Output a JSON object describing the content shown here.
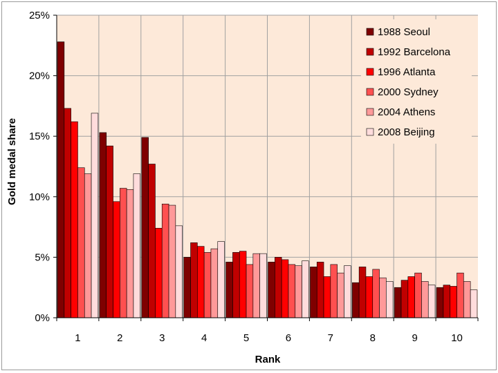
{
  "chart_data": {
    "type": "bar",
    "title": "",
    "xlabel": "Rank",
    "ylabel": "Gold medal share",
    "ylim": [
      0,
      25
    ],
    "yticks": [
      0,
      5,
      10,
      15,
      20,
      25
    ],
    "ytick_labels": [
      "0%",
      "5%",
      "10%",
      "15%",
      "20%",
      "25%"
    ],
    "y_unit": "%",
    "categories": [
      "1",
      "2",
      "3",
      "4",
      "5",
      "6",
      "7",
      "8",
      "9",
      "10"
    ],
    "grid": true,
    "legend_position": "top-right",
    "plot_background": "#fde9d9",
    "series": [
      {
        "name": "1988 Seoul",
        "color": "#7f0000",
        "values": [
          22.8,
          15.3,
          14.9,
          5.0,
          4.6,
          4.6,
          4.2,
          2.9,
          2.5,
          2.5
        ]
      },
      {
        "name": "1992 Barcelona",
        "color": "#c00000",
        "values": [
          17.3,
          14.2,
          12.7,
          6.2,
          5.4,
          5.0,
          4.6,
          4.2,
          3.1,
          2.7
        ]
      },
      {
        "name": "1996 Atlanta",
        "color": "#ff0000",
        "values": [
          16.2,
          9.6,
          7.4,
          5.9,
          5.5,
          4.8,
          3.4,
          3.4,
          3.4,
          2.6
        ]
      },
      {
        "name": "2000 Sydney",
        "color": "#ff5050",
        "values": [
          12.4,
          10.7,
          9.4,
          5.4,
          4.4,
          4.4,
          4.4,
          4.0,
          3.7,
          3.7
        ]
      },
      {
        "name": "2004 Athens",
        "color": "#ff9999",
        "values": [
          11.9,
          10.6,
          9.3,
          5.7,
          5.3,
          4.3,
          3.7,
          3.3,
          3.0,
          3.0
        ]
      },
      {
        "name": "2008 Beijing",
        "color": "#ffdcdc",
        "values": [
          16.9,
          11.9,
          7.6,
          6.3,
          5.3,
          4.7,
          4.3,
          3.0,
          2.7,
          2.3
        ]
      }
    ]
  }
}
